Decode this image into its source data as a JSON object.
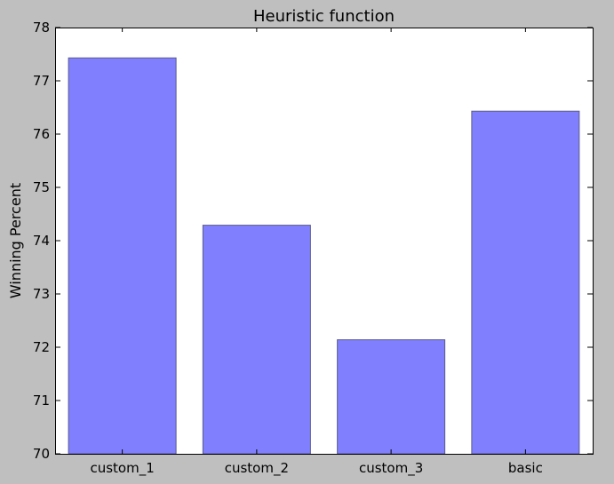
{
  "chart_data": {
    "type": "bar",
    "title": "Heuristic function",
    "xlabel": "",
    "ylabel": "Winning Percent",
    "categories": [
      "custom_1",
      "custom_2",
      "custom_3",
      "basic"
    ],
    "values": [
      77.43,
      74.29,
      72.14,
      76.43
    ],
    "ylim": [
      70,
      78
    ],
    "yticks": [
      "70",
      "71",
      "72",
      "73",
      "74",
      "75",
      "76",
      "77",
      "78"
    ],
    "grid": false,
    "colors": {
      "bar_fill": "#8080ff",
      "bar_edge": "#5a5a8c",
      "figure_background": "#bfbfbf",
      "plot_background": "#ffffff"
    }
  }
}
